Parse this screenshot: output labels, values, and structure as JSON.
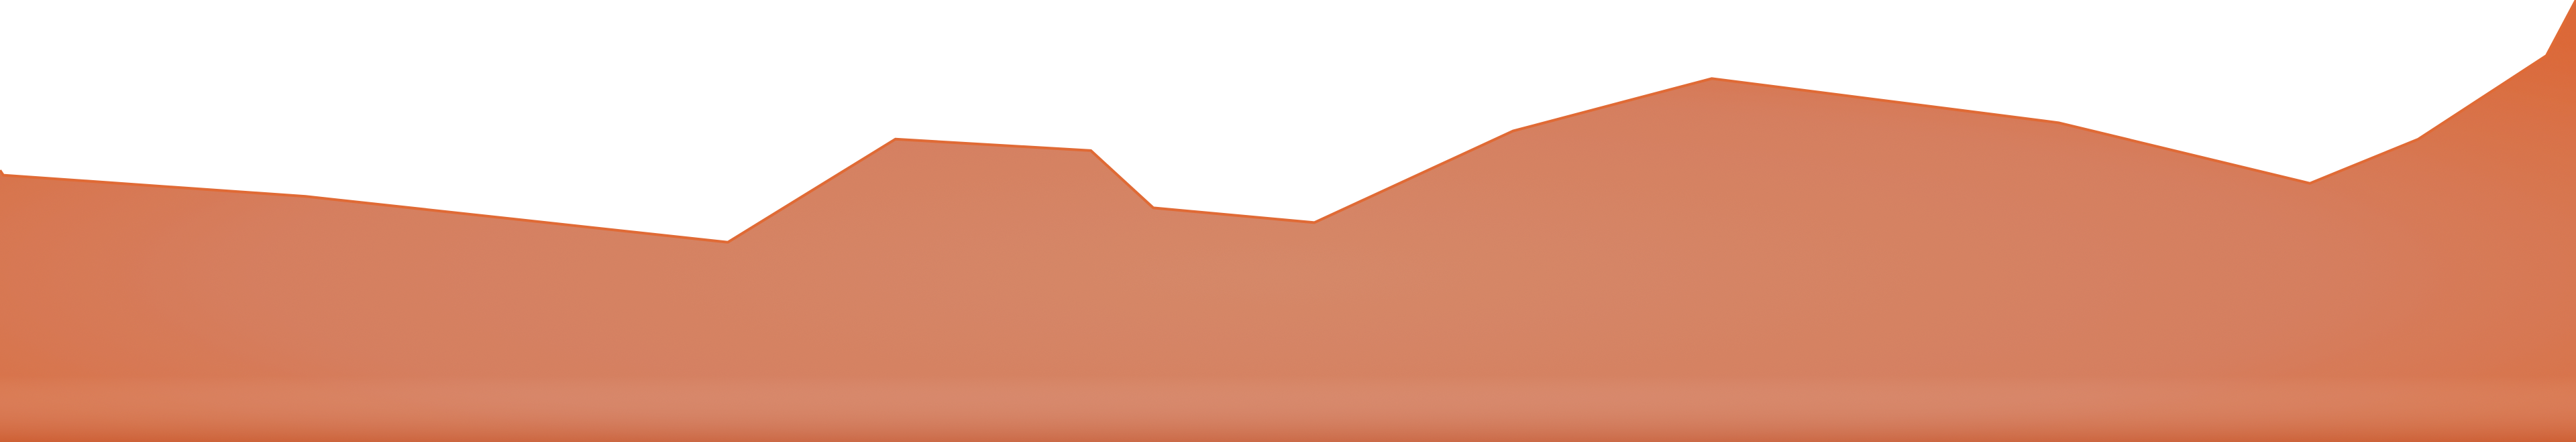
{
  "chart_data": {
    "type": "area",
    "title": "",
    "xlabel": "",
    "ylabel": "",
    "grid": false,
    "legend": "none",
    "xlim": [
      0,
      1568
    ],
    "ylim": [
      0,
      270
    ],
    "series": [
      {
        "fill_color": "#d97a55",
        "edge_color": "#e06a35",
        "points": [
          [
            0,
            166
          ],
          [
            2,
            163
          ],
          [
            186,
            150
          ],
          [
            443,
            122
          ],
          [
            545,
            185
          ],
          [
            664,
            178
          ],
          [
            702,
            143
          ],
          [
            800,
            134
          ],
          [
            921,
            190
          ],
          [
            1042,
            222
          ],
          [
            1253,
            195
          ],
          [
            1406,
            158
          ],
          [
            1472,
            185
          ],
          [
            1550,
            236
          ],
          [
            1568,
            270
          ]
        ]
      }
    ]
  }
}
